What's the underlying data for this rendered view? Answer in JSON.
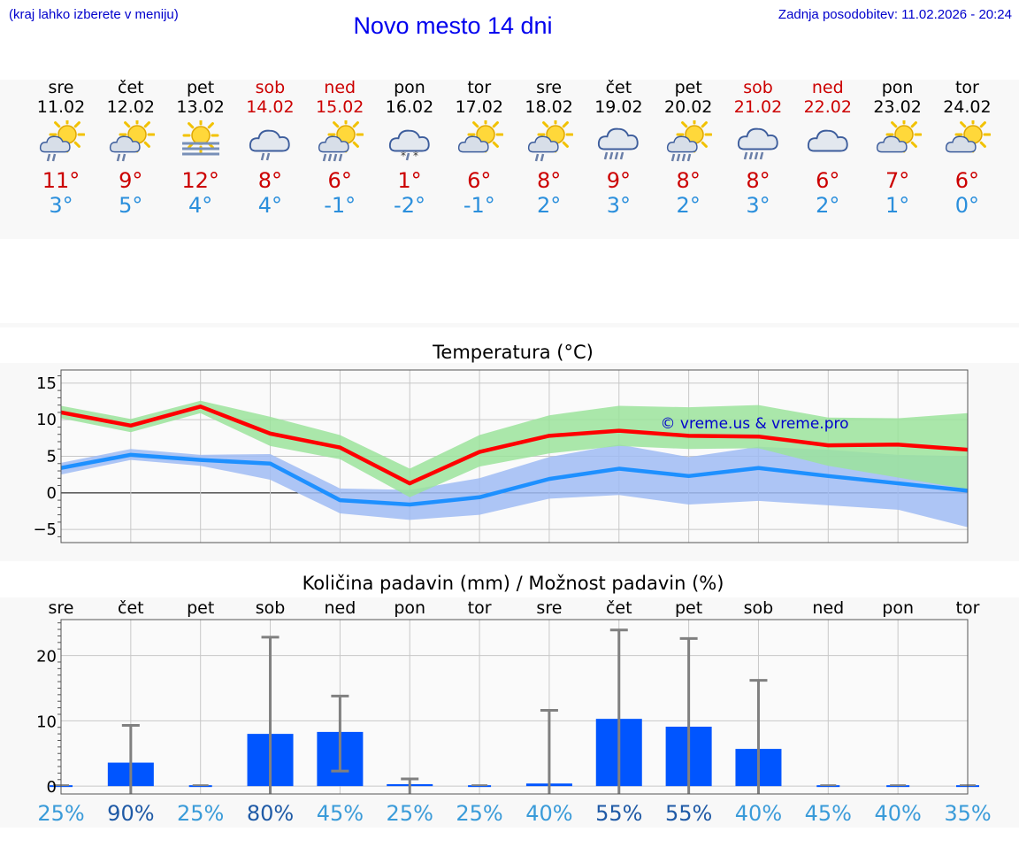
{
  "header": {
    "menu_hint": "(kraj lahko izberete v meniju)",
    "title": "Novo mesto 14 dni",
    "last_update": "Zadnja posodobitev: 11.02.2026 - 20:24"
  },
  "forecast": [
    {
      "day": "sre",
      "date": "11.02",
      "weekend": false,
      "icon": "sun-cloud-rain-icon",
      "max": "11°",
      "min": "3°"
    },
    {
      "day": "čet",
      "date": "12.02",
      "weekend": false,
      "icon": "sun-cloud-rain-icon",
      "max": "9°",
      "min": "5°"
    },
    {
      "day": "pet",
      "date": "13.02",
      "weekend": false,
      "icon": "sun-fog-icon",
      "max": "12°",
      "min": "4°"
    },
    {
      "day": "sob",
      "date": "14.02",
      "weekend": true,
      "icon": "cloud-rain-icon",
      "max": "8°",
      "min": "4°"
    },
    {
      "day": "ned",
      "date": "15.02",
      "weekend": true,
      "icon": "sun-cloud-heavy-rain-icon",
      "max": "6°",
      "min": "-1°"
    },
    {
      "day": "pon",
      "date": "16.02",
      "weekend": false,
      "icon": "cloud-snow-rain-icon",
      "max": "1°",
      "min": "-2°"
    },
    {
      "day": "tor",
      "date": "17.02",
      "weekend": false,
      "icon": "sun-cloud-icon",
      "max": "6°",
      "min": "-1°"
    },
    {
      "day": "sre",
      "date": "18.02",
      "weekend": false,
      "icon": "sun-cloud-rain-icon",
      "max": "8°",
      "min": "2°"
    },
    {
      "day": "čet",
      "date": "19.02",
      "weekend": false,
      "icon": "cloud-heavy-rain-icon",
      "max": "9°",
      "min": "3°"
    },
    {
      "day": "pet",
      "date": "20.02",
      "weekend": false,
      "icon": "sun-cloud-heavy-rain-icon",
      "max": "8°",
      "min": "2°"
    },
    {
      "day": "sob",
      "date": "21.02",
      "weekend": true,
      "icon": "cloud-heavy-rain-icon",
      "max": "8°",
      "min": "3°"
    },
    {
      "day": "ned",
      "date": "22.02",
      "weekend": true,
      "icon": "cloud-icon",
      "max": "6°",
      "min": "2°"
    },
    {
      "day": "pon",
      "date": "23.02",
      "weekend": false,
      "icon": "sun-cloud-icon",
      "max": "7°",
      "min": "1°"
    },
    {
      "day": "tor",
      "date": "24.02",
      "weekend": false,
      "icon": "sun-cloud-icon",
      "max": "6°",
      "min": "0°"
    }
  ],
  "colors": {
    "max_line": "#ff0000",
    "min_line": "#1e90ff",
    "max_band": "#9be39b",
    "min_band": "#9fbbf3",
    "bar": "#0055ff",
    "error": "#808080",
    "watermark": "#0000cc"
  },
  "chart_data": [
    {
      "type": "line",
      "title": "Temperatura (°C)",
      "watermark": "© vreme.us & vreme.pro",
      "x": [
        0,
        1,
        2,
        3,
        4,
        5,
        6,
        7,
        8,
        9,
        10,
        11,
        12,
        13
      ],
      "ylim": [
        -6.8,
        16.8
      ],
      "yticks": [
        -5,
        0,
        5,
        10,
        15
      ],
      "ytick_labels": [
        "−5",
        "0",
        "5",
        "10",
        "15"
      ],
      "series": [
        {
          "name": "max",
          "values": [
            11,
            9.2,
            11.8,
            8.1,
            6.2,
            1.3,
            5.6,
            7.8,
            8.5,
            7.8,
            7.7,
            6.5,
            6.6,
            5.9
          ],
          "band_low": [
            10.2,
            8.3,
            10.9,
            6.4,
            4.6,
            -0.6,
            3.6,
            5.4,
            6.4,
            6.0,
            6.1,
            3.7,
            2.1,
            0.5
          ],
          "band_high": [
            11.9,
            10.1,
            12.6,
            10.4,
            7.9,
            3.3,
            7.9,
            10.6,
            11.9,
            11.7,
            12.0,
            10.3,
            10.2,
            10.9
          ]
        },
        {
          "name": "min",
          "values": [
            3.4,
            5.2,
            4.5,
            4.0,
            -1.0,
            -1.6,
            -0.6,
            1.9,
            3.3,
            2.3,
            3.4,
            2.3,
            1.3,
            0.3
          ],
          "band_low": [
            2.5,
            4.5,
            3.7,
            1.8,
            -2.8,
            -3.7,
            -3.0,
            -0.8,
            -0.3,
            -1.6,
            -1.1,
            -1.7,
            -2.3,
            -4.7
          ],
          "band_high": [
            4.1,
            6.0,
            5.2,
            5.3,
            0.6,
            0.4,
            2.0,
            4.9,
            6.6,
            4.9,
            6.3,
            5.9,
            5.2,
            5.0
          ]
        }
      ]
    },
    {
      "type": "bar",
      "title": "Količina padavin (mm) / Možnost padavin (%)",
      "categories": [
        "sre",
        "čet",
        "pet",
        "sob",
        "ned",
        "pon",
        "tor",
        "sre",
        "čet",
        "pet",
        "sob",
        "ned",
        "pon",
        "tor"
      ],
      "values": [
        0,
        3.6,
        0,
        8,
        8.3,
        0.3,
        0,
        0.4,
        10.3,
        9.1,
        5.7,
        0,
        0,
        0
      ],
      "err_low": [
        0,
        0,
        0,
        0,
        2.3,
        0,
        0,
        0,
        0,
        0,
        0,
        0,
        0,
        0
      ],
      "err_high": [
        0,
        9.3,
        0,
        22.8,
        13.8,
        1.1,
        0,
        11.6,
        23.9,
        22.6,
        16.2,
        0,
        0,
        0
      ],
      "ylim": [
        -1.2,
        25.5
      ],
      "yticks": [
        0,
        10,
        20
      ],
      "ytick_labels": [
        "0",
        "10",
        "20"
      ],
      "probability": [
        "25%",
        "90%",
        "25%",
        "80%",
        "45%",
        "25%",
        "25%",
        "40%",
        "55%",
        "55%",
        "40%",
        "45%",
        "40%",
        "35%"
      ],
      "probability_values": [
        25,
        90,
        25,
        80,
        45,
        25,
        25,
        40,
        55,
        55,
        40,
        45,
        40,
        35
      ]
    }
  ]
}
